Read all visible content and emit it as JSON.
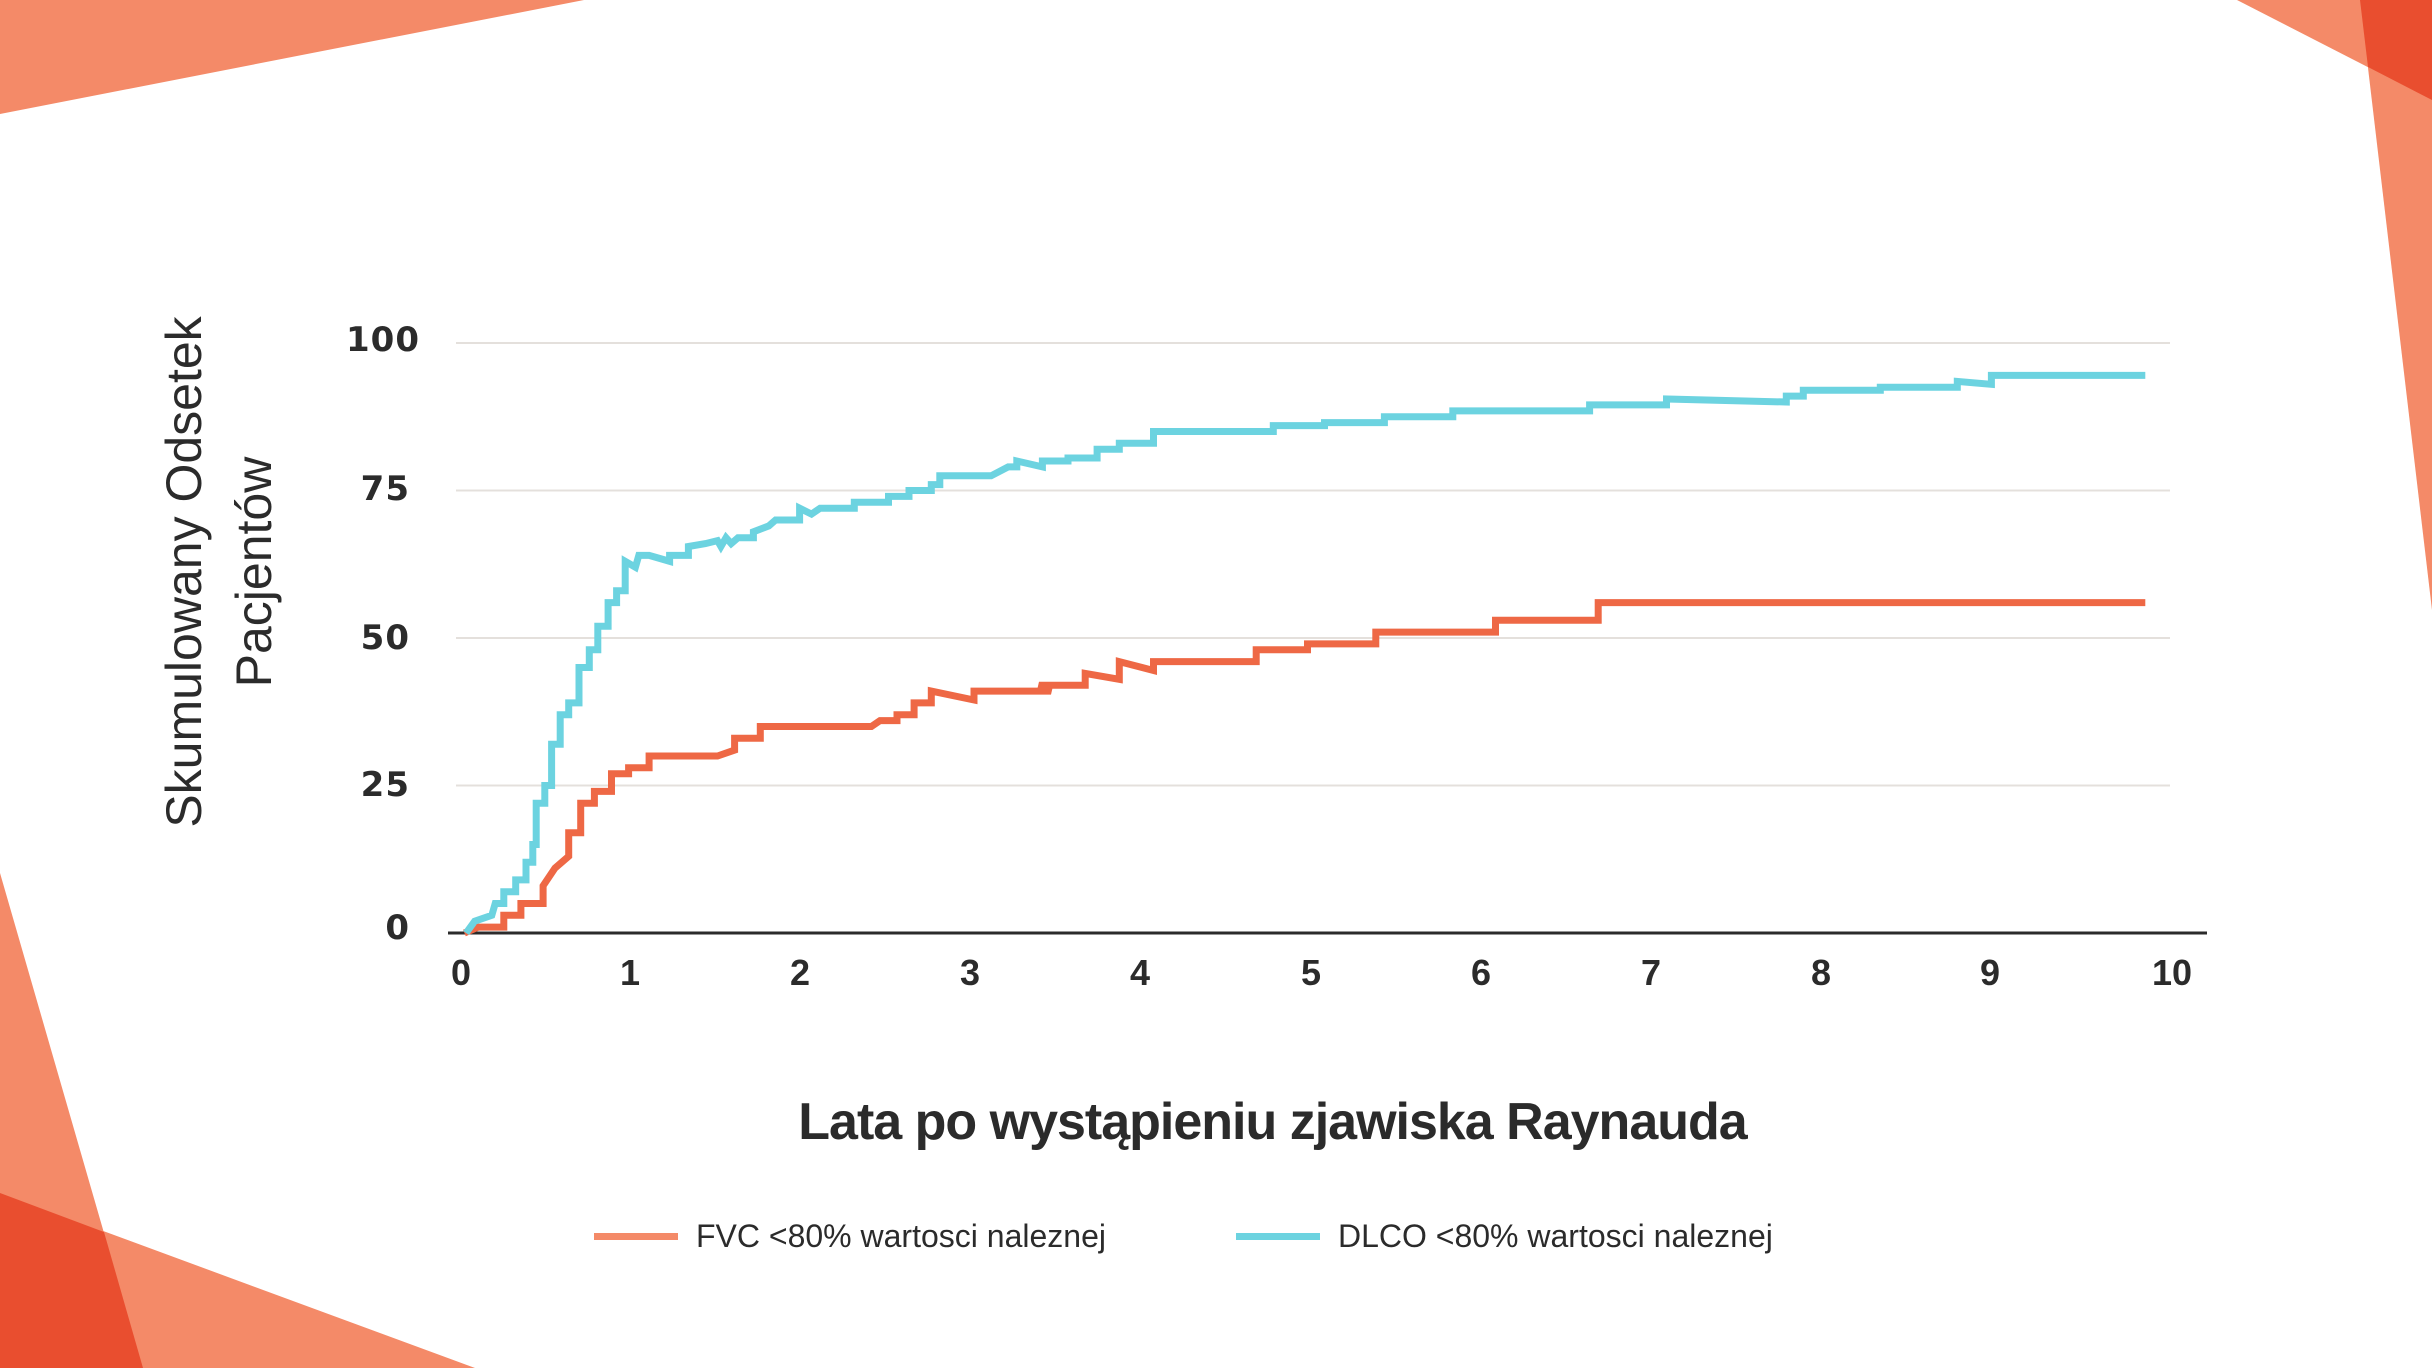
{
  "colors": {
    "fvc": "#EE6845",
    "dlco": "#6CD3E0",
    "fvc_legend": "#F48A68",
    "grid": "#E4E0DC",
    "axis": "#2b2b2b",
    "deco_light": "#F48A68",
    "deco_dark": "#E94E2F"
  },
  "y_axis": {
    "title_line1": "Skumulowany Odsetek",
    "title_line2": "Pacjentów",
    "ticks": [
      "0",
      "25",
      "50",
      "75",
      "100"
    ]
  },
  "x_axis": {
    "title": "Lata po wystąpieniu zjawiska Raynauda",
    "ticks": [
      "0",
      "1",
      "2",
      "3",
      "4",
      "5",
      "6",
      "7",
      "8",
      "9",
      "10"
    ]
  },
  "legend": {
    "items": [
      {
        "label": "FVC <80% wartosci naleznej",
        "series": "fvc"
      },
      {
        "label": "DLCO <80% wartosci naleznej",
        "series": "dlco"
      }
    ]
  },
  "chart_data": {
    "type": "line",
    "title": "",
    "xlabel": "Lata po wystąpieniu zjawiska Raynauda",
    "ylabel": "Skumulowany Odsetek Pacjentów",
    "xlim": [
      0,
      10
    ],
    "ylim": [
      0,
      100
    ],
    "x_ticks": [
      0,
      1,
      2,
      3,
      4,
      5,
      6,
      7,
      8,
      9,
      10
    ],
    "y_ticks": [
      0,
      25,
      50,
      75,
      100
    ],
    "grid": "horizontal",
    "legend_position": "bottom",
    "series": [
      {
        "name": "FVC <80% wartosci naleznej",
        "color": "#EE6845",
        "points": [
          [
            0.02,
            0
          ],
          [
            0.1,
            1
          ],
          [
            0.25,
            1
          ],
          [
            0.25,
            3
          ],
          [
            0.35,
            3
          ],
          [
            0.35,
            5
          ],
          [
            0.48,
            5
          ],
          [
            0.48,
            8
          ],
          [
            0.55,
            11
          ],
          [
            0.63,
            13
          ],
          [
            0.63,
            17
          ],
          [
            0.7,
            17
          ],
          [
            0.7,
            22
          ],
          [
            0.78,
            22
          ],
          [
            0.78,
            24
          ],
          [
            0.88,
            24
          ],
          [
            0.88,
            27
          ],
          [
            0.98,
            27
          ],
          [
            0.98,
            28
          ],
          [
            1.1,
            28
          ],
          [
            1.1,
            30
          ],
          [
            1.2,
            30
          ],
          [
            1.5,
            30
          ],
          [
            1.6,
            31
          ],
          [
            1.6,
            33
          ],
          [
            1.75,
            33
          ],
          [
            1.75,
            35
          ],
          [
            2.05,
            35
          ],
          [
            2.4,
            35
          ],
          [
            2.45,
            36
          ],
          [
            2.55,
            36
          ],
          [
            2.55,
            37
          ],
          [
            2.65,
            37
          ],
          [
            2.65,
            39
          ],
          [
            2.75,
            39
          ],
          [
            2.75,
            41
          ],
          [
            3.0,
            39.5
          ],
          [
            3.0,
            41
          ],
          [
            3.45,
            41
          ],
          [
            3.38,
            42
          ],
          [
            3.65,
            42
          ],
          [
            3.65,
            44
          ],
          [
            3.85,
            43
          ],
          [
            3.85,
            46
          ],
          [
            4.05,
            44.5
          ],
          [
            4.05,
            46
          ],
          [
            4.65,
            46
          ],
          [
            4.65,
            48
          ],
          [
            4.95,
            48
          ],
          [
            4.95,
            49
          ],
          [
            5.35,
            49
          ],
          [
            5.35,
            51
          ],
          [
            6.05,
            51
          ],
          [
            6.05,
            53
          ],
          [
            6.65,
            53
          ],
          [
            6.65,
            56
          ],
          [
            9.85,
            56
          ]
        ]
      },
      {
        "name": "DLCO <80% wartosci naleznej",
        "color": "#6CD3E0",
        "points": [
          [
            0.03,
            0
          ],
          [
            0.08,
            2
          ],
          [
            0.18,
            3
          ],
          [
            0.2,
            5
          ],
          [
            0.25,
            5
          ],
          [
            0.25,
            7
          ],
          [
            0.32,
            7
          ],
          [
            0.32,
            9
          ],
          [
            0.38,
            9
          ],
          [
            0.38,
            12
          ],
          [
            0.42,
            12
          ],
          [
            0.42,
            15
          ],
          [
            0.44,
            15
          ],
          [
            0.44,
            22
          ],
          [
            0.49,
            22
          ],
          [
            0.49,
            25
          ],
          [
            0.53,
            25
          ],
          [
            0.53,
            32
          ],
          [
            0.58,
            32
          ],
          [
            0.58,
            37
          ],
          [
            0.63,
            37
          ],
          [
            0.63,
            39
          ],
          [
            0.69,
            39
          ],
          [
            0.69,
            45
          ],
          [
            0.75,
            45
          ],
          [
            0.75,
            48
          ],
          [
            0.8,
            48
          ],
          [
            0.8,
            52
          ],
          [
            0.86,
            52
          ],
          [
            0.86,
            56
          ],
          [
            0.91,
            56
          ],
          [
            0.91,
            58
          ],
          [
            0.96,
            58
          ],
          [
            0.96,
            63
          ],
          [
            1.02,
            62
          ],
          [
            1.04,
            64
          ],
          [
            1.1,
            64
          ],
          [
            1.22,
            63
          ],
          [
            1.22,
            64
          ],
          [
            1.33,
            64
          ],
          [
            1.33,
            65.5
          ],
          [
            1.43,
            66
          ],
          [
            1.5,
            66.5
          ],
          [
            1.52,
            65.5
          ],
          [
            1.55,
            67
          ],
          [
            1.58,
            66
          ],
          [
            1.62,
            67
          ],
          [
            1.71,
            67
          ],
          [
            1.71,
            68
          ],
          [
            1.8,
            69
          ],
          [
            1.84,
            70
          ],
          [
            1.98,
            70
          ],
          [
            1.98,
            72
          ],
          [
            2.05,
            71
          ],
          [
            2.1,
            72
          ],
          [
            2.3,
            72
          ],
          [
            2.3,
            73
          ],
          [
            2.5,
            73
          ],
          [
            2.5,
            74
          ],
          [
            2.62,
            74
          ],
          [
            2.62,
            75
          ],
          [
            2.75,
            75
          ],
          [
            2.75,
            76
          ],
          [
            2.8,
            76
          ],
          [
            2.8,
            77.5
          ],
          [
            3.1,
            77.5
          ],
          [
            3.2,
            79
          ],
          [
            3.25,
            79
          ],
          [
            3.25,
            80
          ],
          [
            3.4,
            79
          ],
          [
            3.4,
            80
          ],
          [
            3.55,
            80
          ],
          [
            3.55,
            80.5
          ],
          [
            3.72,
            80.5
          ],
          [
            3.72,
            82
          ],
          [
            3.85,
            82
          ],
          [
            3.85,
            83
          ],
          [
            4.05,
            83
          ],
          [
            4.05,
            85
          ],
          [
            4.75,
            85
          ],
          [
            4.75,
            86
          ],
          [
            5.05,
            86
          ],
          [
            5.05,
            86.5
          ],
          [
            5.4,
            86.5
          ],
          [
            5.4,
            87.5
          ],
          [
            5.8,
            87.5
          ],
          [
            5.8,
            88.5
          ],
          [
            6.6,
            88.5
          ],
          [
            6.6,
            89.5
          ],
          [
            7.05,
            89.5
          ],
          [
            7.05,
            90.5
          ],
          [
            7.75,
            90
          ],
          [
            7.75,
            91
          ],
          [
            7.85,
            91
          ],
          [
            7.85,
            92
          ],
          [
            8.3,
            92
          ],
          [
            8.3,
            92.5
          ],
          [
            8.75,
            92.5
          ],
          [
            8.75,
            93.5
          ],
          [
            8.95,
            93
          ],
          [
            8.95,
            94.5
          ],
          [
            9.85,
            94.5
          ]
        ]
      }
    ]
  }
}
